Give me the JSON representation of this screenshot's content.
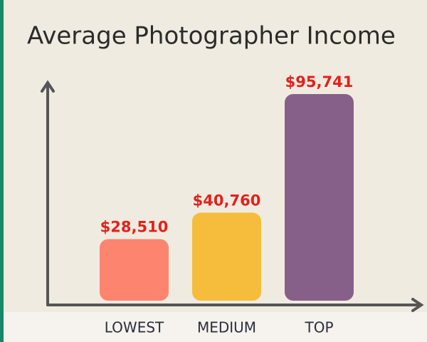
{
  "chart_data": {
    "type": "bar",
    "title": "Average Photographer Income",
    "categories": [
      "LOWEST",
      "MEDIUM",
      "TOP"
    ],
    "values": [
      28510,
      40760,
      95741
    ],
    "value_labels": [
      "$28,510",
      "$40,760",
      "$95,741"
    ],
    "colors": [
      "#fd8570",
      "#f6bd3d",
      "#876089"
    ],
    "grid": false
  }
}
